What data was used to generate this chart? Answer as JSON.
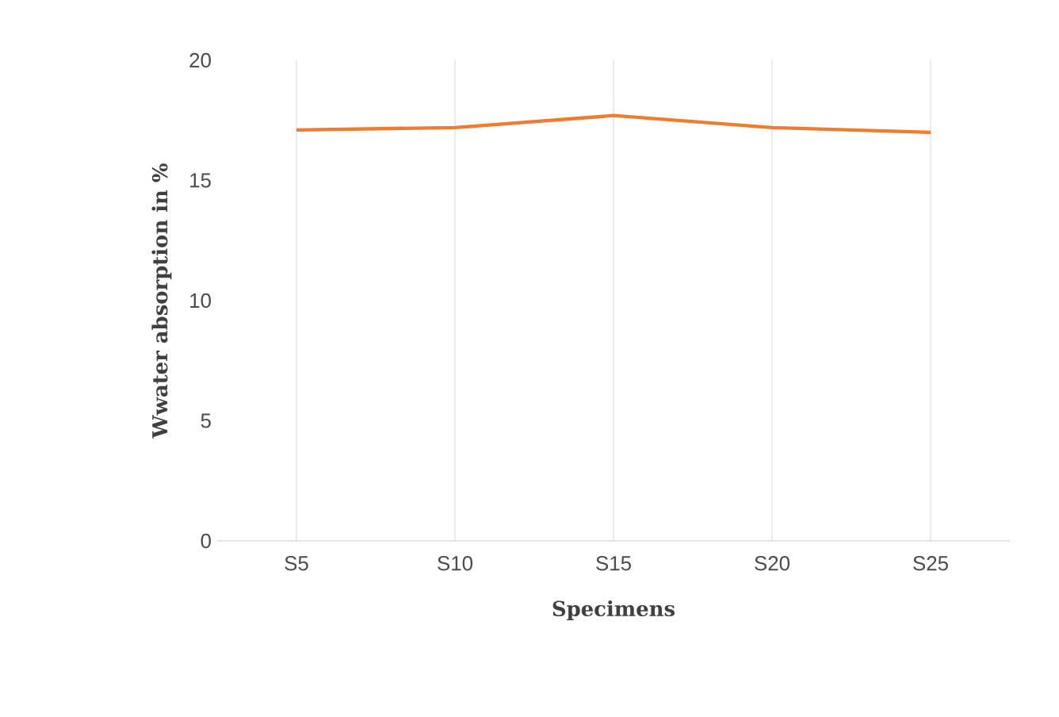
{
  "chart_data": {
    "type": "line",
    "xlabel": "Specimens",
    "ylabel": "Wwater absorption in %",
    "categories": [
      "S5",
      "S10",
      "S15",
      "S20",
      "S25"
    ],
    "series": [
      {
        "color": "#ed7d31",
        "values": [
          17.1,
          17.2,
          17.7,
          17.2,
          17.0
        ]
      }
    ],
    "ylim": [
      0,
      20
    ],
    "yticks": [
      0,
      5,
      10,
      15,
      20
    ],
    "grid": "x",
    "legend": false,
    "marker": "none",
    "line_style": "solid"
  }
}
